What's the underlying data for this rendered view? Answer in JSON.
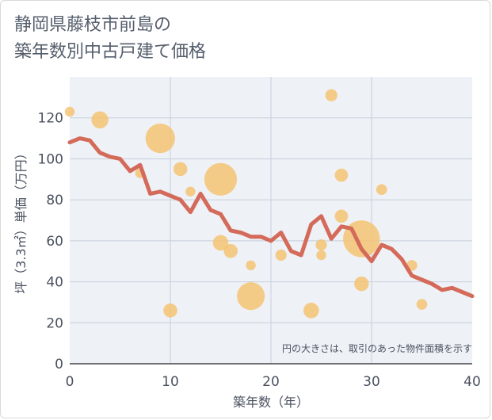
{
  "chart_data": {
    "type": "scatter",
    "title_lines": [
      "静岡県藤枝市前島の",
      "築年数別中古戸建て価格"
    ],
    "xlabel": "築年数（年）",
    "ylabel": "坪（3.3㎡）単価（万円）",
    "xlim": [
      0,
      40
    ],
    "ylim": [
      0,
      140
    ],
    "x_ticks": [
      0,
      10,
      20,
      30,
      40
    ],
    "y_ticks": [
      0,
      20,
      40,
      60,
      80,
      100,
      120
    ],
    "grid": true,
    "note": "円の大きさは、取引のあった物件面積を示す",
    "bubble_color": "#f5c06c",
    "line_color": "#d46a5a",
    "bubbles": [
      {
        "x": 0,
        "y": 123,
        "size": 1
      },
      {
        "x": 3,
        "y": 119,
        "size": 3
      },
      {
        "x": 7,
        "y": 93,
        "size": 1
      },
      {
        "x": 9,
        "y": 110,
        "size": 9
      },
      {
        "x": 10,
        "y": 26,
        "size": 2
      },
      {
        "x": 11,
        "y": 95,
        "size": 2
      },
      {
        "x": 12,
        "y": 84,
        "size": 1
      },
      {
        "x": 15,
        "y": 90,
        "size": 11
      },
      {
        "x": 15,
        "y": 59,
        "size": 2.5
      },
      {
        "x": 16,
        "y": 55,
        "size": 2
      },
      {
        "x": 18,
        "y": 48,
        "size": 1
      },
      {
        "x": 18,
        "y": 33,
        "size": 8
      },
      {
        "x": 21,
        "y": 53,
        "size": 1.3
      },
      {
        "x": 24,
        "y": 26,
        "size": 2.5
      },
      {
        "x": 25,
        "y": 58,
        "size": 1.3
      },
      {
        "x": 25,
        "y": 53,
        "size": 1
      },
      {
        "x": 26,
        "y": 131,
        "size": 1.5
      },
      {
        "x": 27,
        "y": 92,
        "size": 1.8
      },
      {
        "x": 27,
        "y": 72,
        "size": 1.8
      },
      {
        "x": 29,
        "y": 61,
        "size": 14
      },
      {
        "x": 29,
        "y": 39,
        "size": 2.2
      },
      {
        "x": 31,
        "y": 85,
        "size": 1.2
      },
      {
        "x": 34,
        "y": 48,
        "size": 1.2
      },
      {
        "x": 35,
        "y": 29,
        "size": 1.2
      }
    ],
    "trend": {
      "x": [
        0,
        1,
        2,
        3,
        4,
        5,
        6,
        7,
        8,
        9,
        10,
        11,
        12,
        13,
        14,
        15,
        16,
        17,
        18,
        19,
        20,
        21,
        22,
        23,
        24,
        25,
        26,
        27,
        28,
        29,
        30,
        31,
        32,
        33,
        34,
        35,
        36,
        37,
        38,
        39,
        40
      ],
      "y": [
        108,
        110,
        109,
        103,
        101,
        100,
        94,
        97,
        83,
        84,
        82,
        80,
        74,
        83,
        75,
        73,
        65,
        64,
        62,
        62,
        60,
        64,
        55,
        53,
        68,
        72,
        61,
        67,
        66,
        56,
        50,
        58,
        56,
        51,
        43,
        41,
        39,
        36,
        37,
        35,
        33
      ]
    }
  }
}
